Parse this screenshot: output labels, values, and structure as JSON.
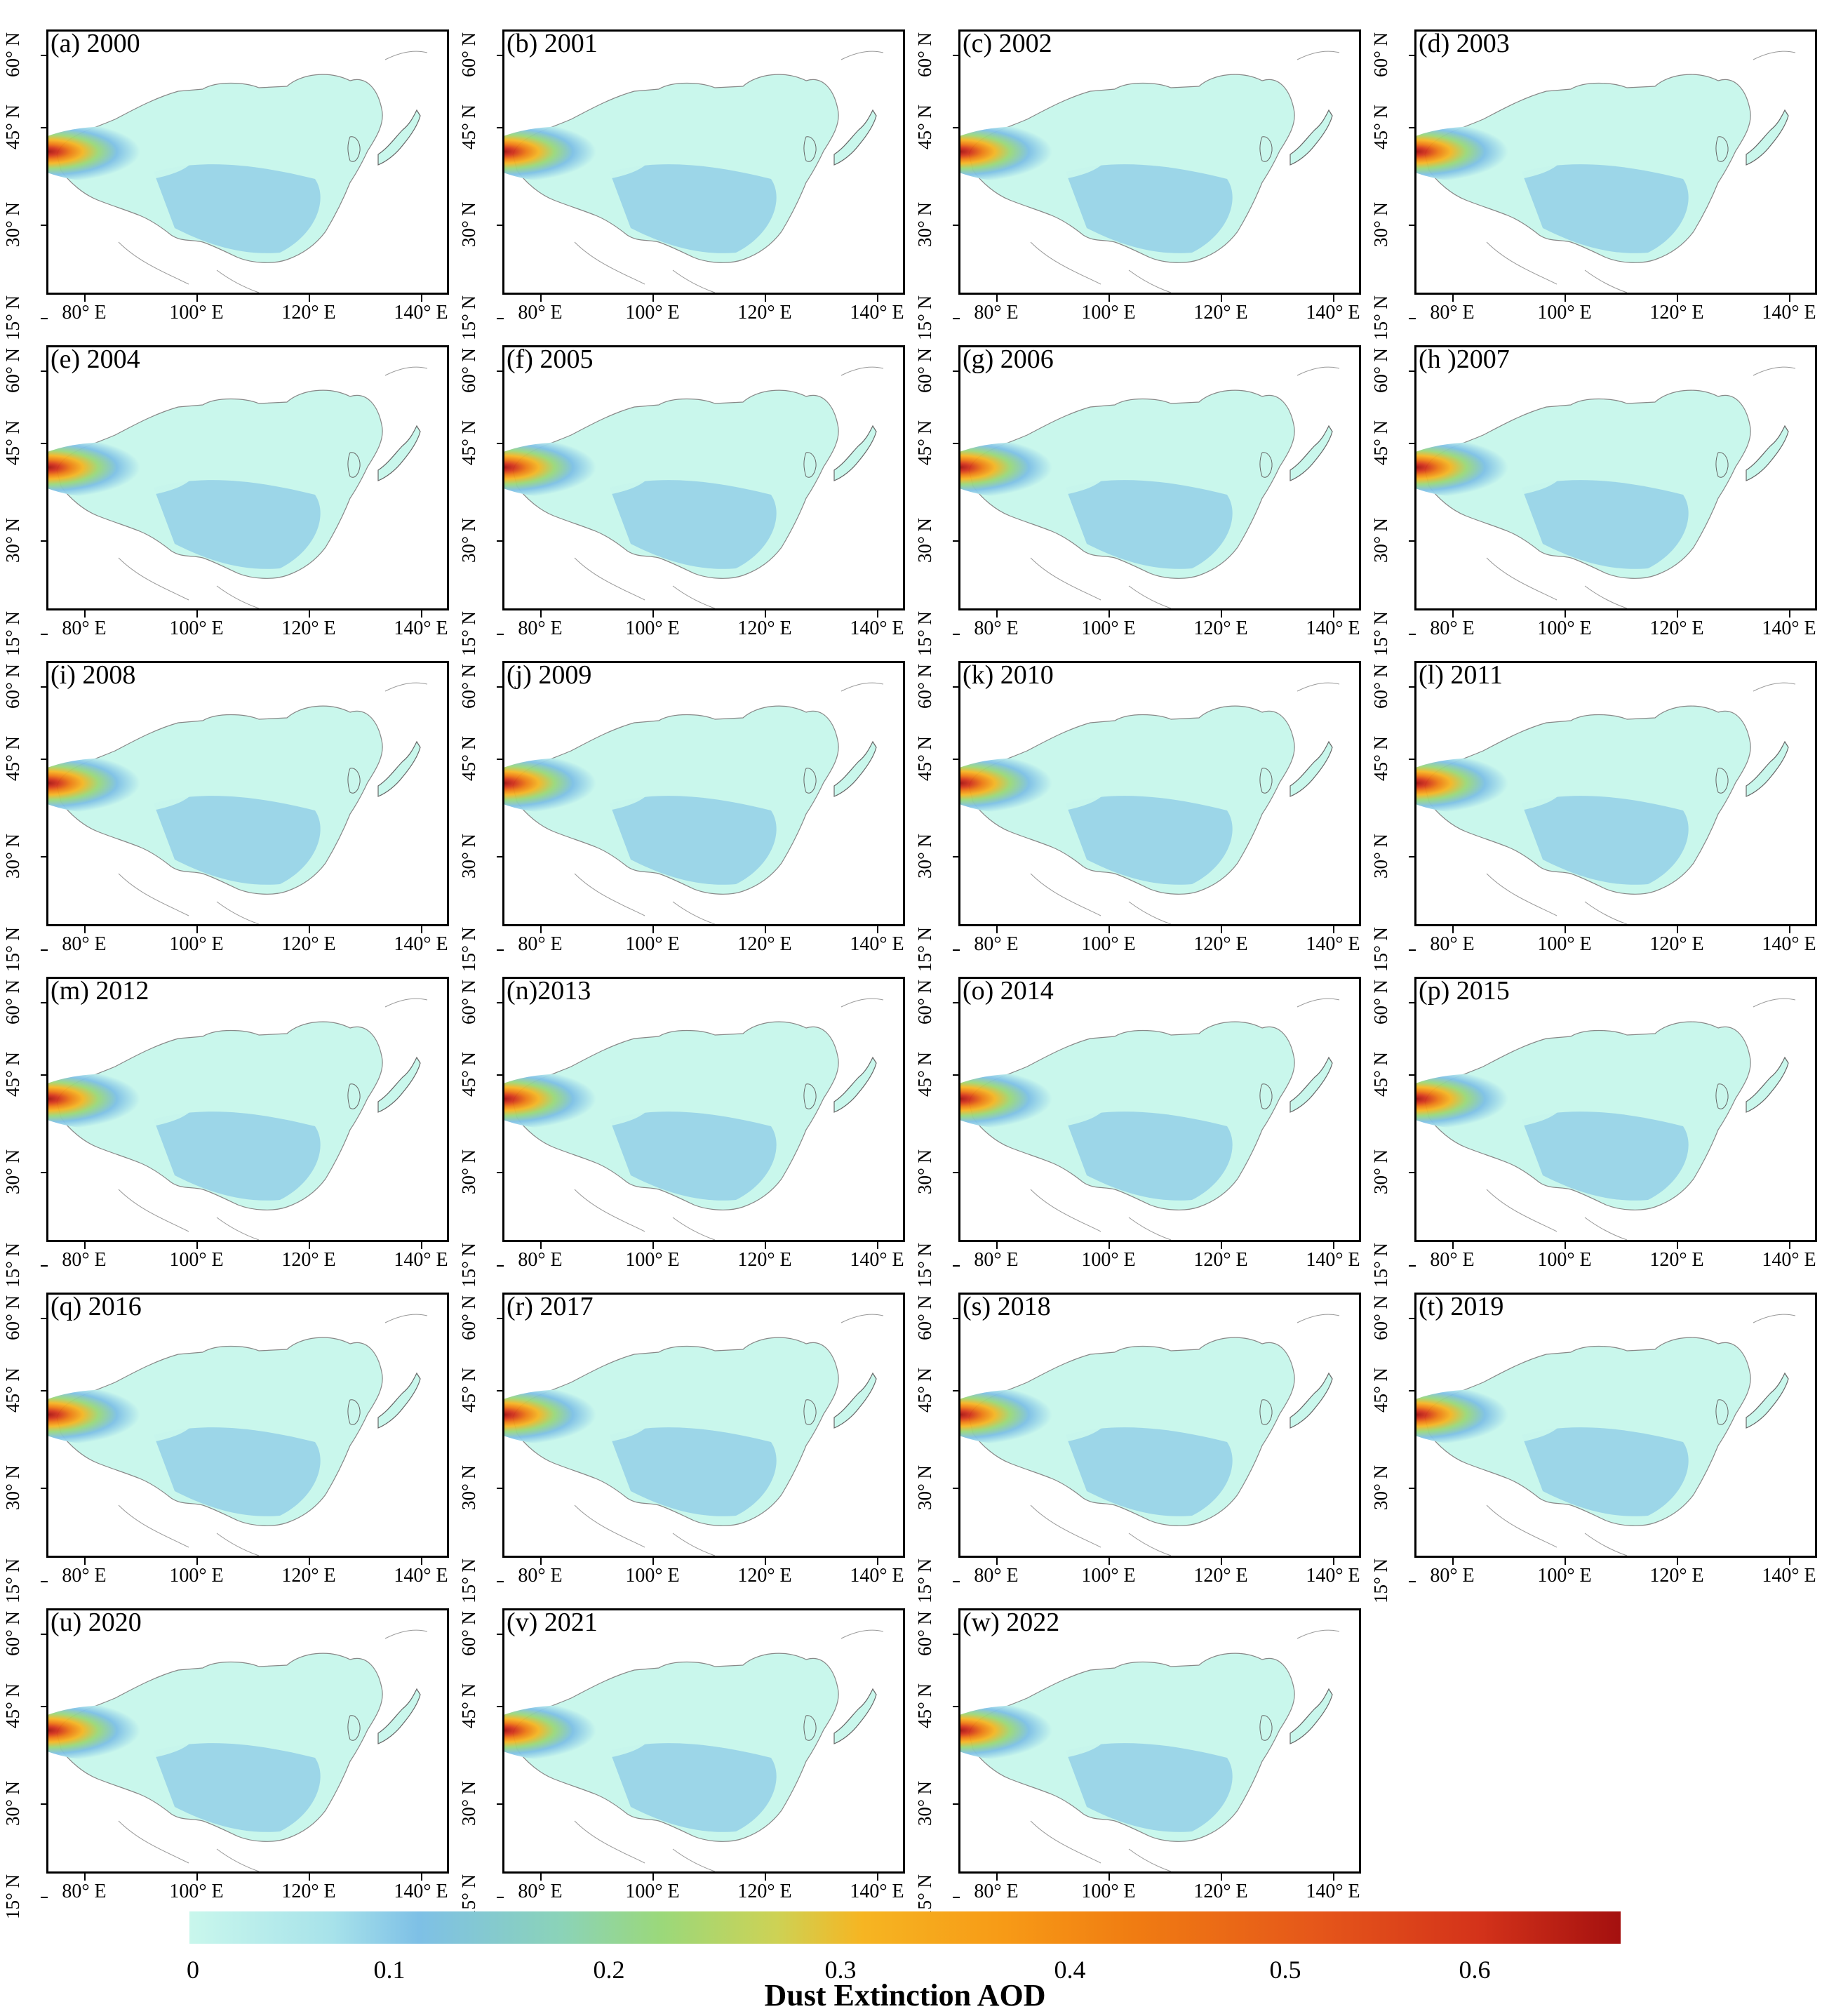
{
  "figure": {
    "panels": [
      {
        "label": "(a) 2000"
      },
      {
        "label": "(b) 2001"
      },
      {
        "label": "(c) 2002"
      },
      {
        "label": "(d) 2003"
      },
      {
        "label": "(e) 2004"
      },
      {
        "label": "(f) 2005"
      },
      {
        "label": "(g) 2006"
      },
      {
        "label": "(h )2007"
      },
      {
        "label": "(i) 2008"
      },
      {
        "label": "(j) 2009"
      },
      {
        "label": "(k) 2010"
      },
      {
        "label": "(l) 2011"
      },
      {
        "label": "(m) 2012"
      },
      {
        "label": "(n)2013"
      },
      {
        "label": "(o) 2014"
      },
      {
        "label": "(p) 2015"
      },
      {
        "label": "(q) 2016"
      },
      {
        "label": "(r) 2017"
      },
      {
        "label": "(s) 2018"
      },
      {
        "label": "(t) 2019"
      },
      {
        "label": "(u) 2020"
      },
      {
        "label": "(v) 2021"
      },
      {
        "label": "(w) 2022"
      }
    ],
    "x_ticks": [
      "80° E",
      "100° E",
      "120° E",
      "140° E"
    ],
    "y_ticks": [
      "60° N",
      "45° N",
      "30° N",
      "15° N"
    ],
    "colorbar": {
      "title": "Dust Extinction AOD",
      "ticks": [
        "0",
        "0.1",
        "0.2",
        "0.3",
        "0.4",
        "0.5",
        "0.6"
      ],
      "colors": {
        "low": "#c9f7ec",
        "blue": "#7ec0e6",
        "green": "#9bd87a",
        "yellow": "#f6b522",
        "orange": "#f07c12",
        "red": "#d4331a",
        "dark_red": "#a4100f"
      }
    }
  }
}
